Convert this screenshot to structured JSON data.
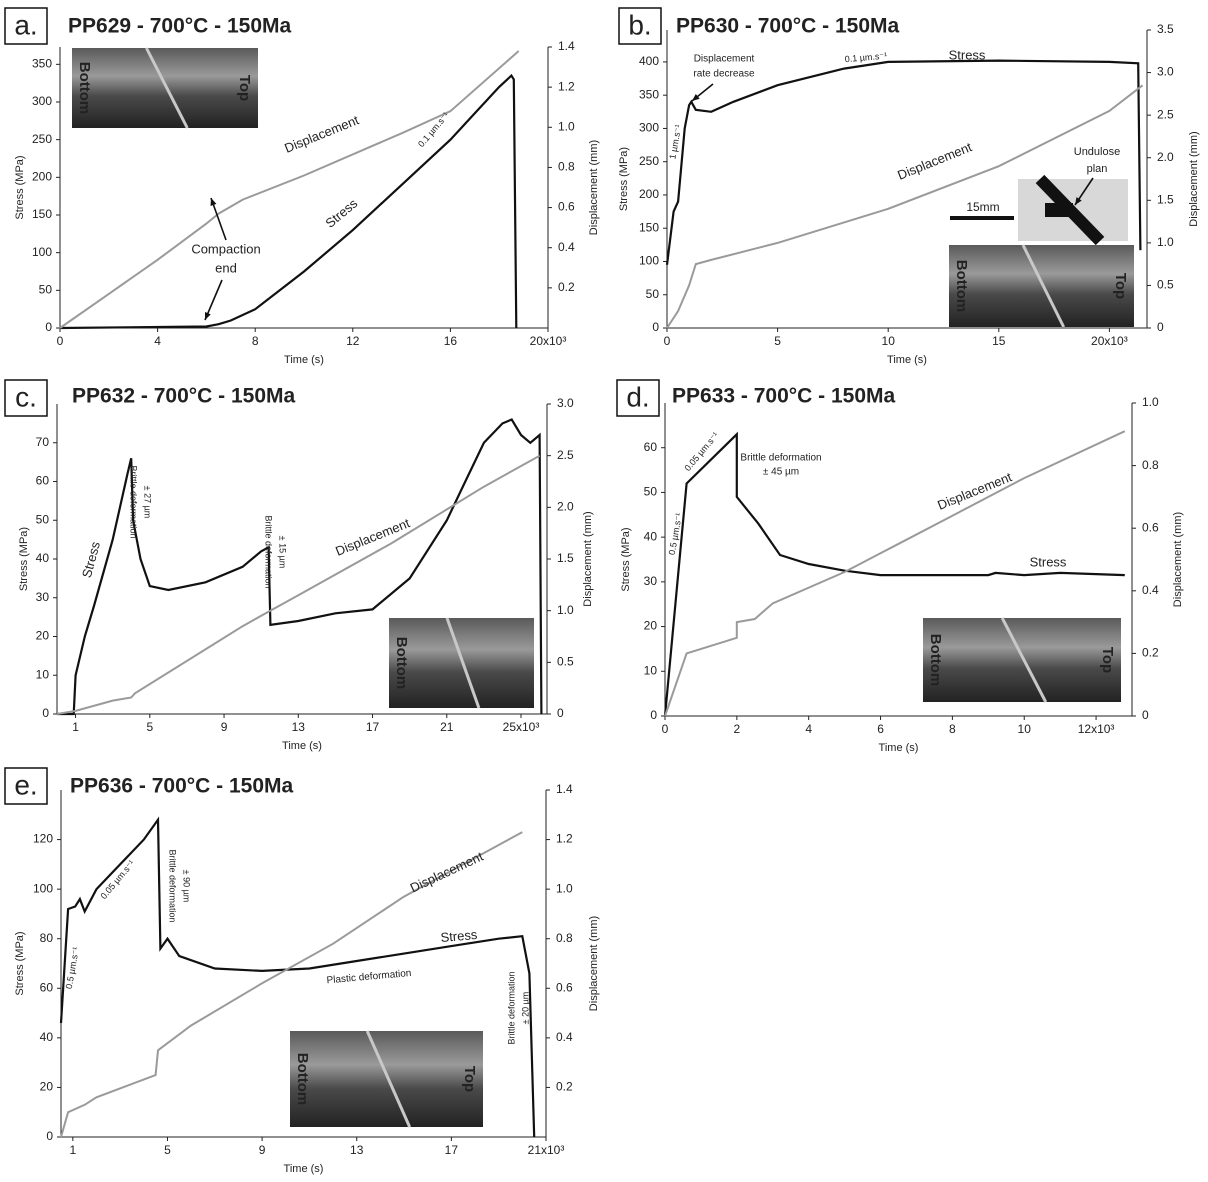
{
  "chart_data": [
    {
      "type": "line",
      "panel_label": "a.",
      "title": "PP629 - 700°C - 150Ma",
      "x_label": "Time (s)",
      "y_label": "Stress (MPa)",
      "y2_label": "Displacement (mm)",
      "xlim": [
        0,
        20
      ],
      "xticks": [
        0,
        4,
        8,
        12,
        16,
        {
          "value": 20,
          "label": "20x10³"
        }
      ],
      "ylim": [
        0,
        373
      ],
      "yticks": [
        0,
        50,
        100,
        150,
        200,
        250,
        300,
        350
      ],
      "y2lim": [
        0,
        1.4
      ],
      "y2ticks": [
        0.2,
        0.4,
        0.6,
        0.8,
        {
          "value": 1,
          "label": "1.0"
        },
        1.2,
        1.4
      ],
      "series": [
        {
          "name": "Stress",
          "color": "#111111",
          "x": [
            0,
            6,
            6.5,
            7,
            8,
            10,
            12,
            14,
            16,
            17,
            18,
            18.5,
            18.6,
            18.7
          ],
          "values": [
            0,
            2,
            5,
            10,
            25,
            75,
            130,
            190,
            250,
            285,
            320,
            335,
            330,
            0
          ]
        },
        {
          "name": "Displacement",
          "color": "#9a9a9a",
          "axis": "y2",
          "x": [
            0,
            2,
            4,
            6,
            6.5,
            7.5,
            10,
            14,
            16,
            18.8
          ],
          "values": [
            0,
            0.17,
            0.34,
            0.52,
            0.57,
            0.64,
            0.76,
            0.97,
            1.08,
            1.38
          ]
        }
      ],
      "annotations": [
        "0.1 µm.s⁻¹",
        "Compaction",
        "end"
      ],
      "photo_labels": [
        "Bottom",
        "Top"
      ]
    },
    {
      "type": "line",
      "panel_label": "b.",
      "title": "PP630 - 700°C - 150Ma",
      "x_label": "Time (s)",
      "y_label": "Stress (MPa)",
      "y2_label": "Displacement (mm)",
      "xlim": [
        0,
        21.7
      ],
      "xticks": [
        0,
        5,
        10,
        15,
        {
          "value": 20,
          "label": "20x10³"
        }
      ],
      "ylim": [
        0,
        448
      ],
      "yticks": [
        0,
        50,
        100,
        150,
        200,
        250,
        300,
        350,
        400
      ],
      "y2lim": [
        0,
        3.5
      ],
      "y2ticks": [
        0,
        0.5,
        {
          "value": 1,
          "label": "1.0"
        },
        1.5,
        {
          "value": 2,
          "label": "2.0"
        },
        2.5,
        {
          "value": 3,
          "label": "3.0"
        },
        3.5
      ],
      "series": [
        {
          "name": "Stress",
          "color": "#111111",
          "x": [
            0,
            0.3,
            0.5,
            0.8,
            1.0,
            1.1,
            1.3,
            2,
            3,
            5,
            8,
            10,
            15,
            20,
            21.3,
            21.4
          ],
          "values": [
            95,
            175,
            190,
            300,
            335,
            340,
            328,
            325,
            340,
            365,
            390,
            400,
            402,
            400,
            398,
            117
          ]
        },
        {
          "name": "Displacement",
          "color": "#9a9a9a",
          "axis": "y2",
          "x": [
            0,
            0.5,
            1,
            1.3,
            2,
            5,
            10,
            15,
            20,
            21.5
          ],
          "values": [
            0,
            0.2,
            0.5,
            0.75,
            0.8,
            1.0,
            1.4,
            1.9,
            2.55,
            2.85
          ]
        }
      ],
      "annotations": [
        "Displacement",
        "rate decrease",
        "1 µm.s⁻¹",
        "0.1 µm.s⁻¹",
        "15mm",
        "Undulose",
        "plan"
      ],
      "photo_labels": [
        "Bottom",
        "Top"
      ]
    },
    {
      "type": "line",
      "panel_label": "c.",
      "title": "PP632 - 700°C - 150Ma",
      "x_label": "Time (s)",
      "y_label": "Stress (MPa)",
      "y2_label": "Displacement (mm)",
      "xlim": [
        0,
        26.4
      ],
      "xticks": [
        1,
        5,
        9,
        13,
        17,
        21,
        {
          "value": 25,
          "label": "25x10³"
        }
      ],
      "ylim": [
        0,
        80
      ],
      "yticks": [
        0,
        10,
        20,
        30,
        40,
        50,
        60,
        70
      ],
      "y2lim": [
        0,
        3
      ],
      "y2ticks": [
        0,
        0.5,
        {
          "value": 1,
          "label": "1.0"
        },
        1.5,
        {
          "value": 2,
          "label": "2.0"
        },
        2.5,
        {
          "value": 3,
          "label": "3.0"
        }
      ],
      "series": [
        {
          "name": "Stress",
          "color": "#111111",
          "x": [
            0,
            0.9,
            1,
            1.5,
            2,
            3,
            3.8,
            4,
            4.1,
            4.5,
            5,
            6,
            8,
            10,
            11,
            11.4,
            11.5,
            13,
            15,
            17,
            19,
            21,
            22,
            23,
            24,
            24.5,
            25,
            25.5,
            26,
            26.1
          ],
          "values": [
            0,
            0,
            10,
            20,
            28,
            45,
            62,
            66,
            50,
            40,
            33,
            32,
            34,
            38,
            42,
            43,
            23,
            24,
            26,
            27,
            35,
            50,
            60,
            70,
            75,
            76,
            72,
            70,
            72,
            0
          ]
        },
        {
          "name": "Displacement",
          "color": "#9a9a9a",
          "axis": "y2",
          "x": [
            0,
            1,
            3,
            4,
            4.2,
            10,
            11,
            13,
            18,
            23,
            26
          ],
          "values": [
            0,
            0.03,
            0.13,
            0.16,
            0.2,
            0.85,
            0.95,
            1.15,
            1.65,
            2.2,
            2.5
          ]
        }
      ],
      "annotations": [
        "Brittle deformation",
        "± 27 µm",
        "Brittle deformation",
        "± 15 µm"
      ],
      "photo_labels": [
        "Bottom"
      ]
    },
    {
      "type": "line",
      "panel_label": "d.",
      "title": "PP633 - 700°C - 150Ma",
      "x_label": "Time (s)",
      "y_label": "Stress (MPa)",
      "y2_label": "Displacement (mm)",
      "xlim": [
        0,
        13
      ],
      "xticks": [
        0,
        2,
        4,
        6,
        8,
        10,
        {
          "value": 12,
          "label": "12x10³"
        }
      ],
      "ylim": [
        0,
        70
      ],
      "yticks": [
        0,
        10,
        20,
        30,
        40,
        50,
        60
      ],
      "y2lim": [
        0,
        1
      ],
      "y2ticks": [
        0,
        0.2,
        0.4,
        0.6,
        0.8,
        {
          "value": 1,
          "label": "1.0"
        }
      ],
      "series": [
        {
          "name": "Stress",
          "color": "#111111",
          "x": [
            0,
            0.6,
            2,
            2,
            2.6,
            3.2,
            4,
            5,
            6,
            9,
            9.2,
            10,
            11,
            12.8
          ],
          "values": [
            0,
            52,
            63,
            49,
            43,
            36,
            34,
            32.5,
            31.5,
            31.5,
            32,
            31.5,
            32,
            31.5
          ]
        },
        {
          "name": "Displacement",
          "color": "#9a9a9a",
          "axis": "y2",
          "x": [
            0,
            0.6,
            2,
            2,
            2.5,
            3,
            5,
            8,
            10,
            12.8
          ],
          "values": [
            0,
            0.2,
            0.25,
            0.3,
            0.31,
            0.36,
            0.46,
            0.64,
            0.76,
            0.91
          ]
        }
      ],
      "annotations": [
        "0.05 µm.s⁻¹",
        "0.5 µm.s⁻¹",
        "Brittle deformation",
        "± 45 µm"
      ],
      "photo_labels": [
        "Bottom",
        "Top"
      ]
    },
    {
      "type": "line",
      "panel_label": "e.",
      "title": "PP636 - 700°C - 150Ma",
      "x_label": "Time (s)",
      "y_label": "Stress (MPa)",
      "y2_label": "Displacement (mm)",
      "xlim": [
        0.5,
        21
      ],
      "xticks": [
        1,
        5,
        9,
        13,
        17,
        {
          "value": 21,
          "label": "21x10³"
        }
      ],
      "ylim": [
        0,
        140
      ],
      "yticks": [
        0,
        20,
        40,
        60,
        80,
        100,
        120
      ],
      "y2lim": [
        0,
        1.4
      ],
      "y2ticks": [
        0.2,
        0.4,
        0.6,
        0.8,
        {
          "value": 1,
          "label": "1.0"
        },
        1.2,
        1.4
      ],
      "series": [
        {
          "name": "Stress",
          "color": "#111111",
          "x": [
            0.5,
            0.8,
            1.1,
            1.3,
            1.5,
            2,
            3,
            4,
            4.6,
            4.7,
            5,
            5.5,
            7,
            9,
            11,
            13,
            15,
            17,
            19,
            20,
            20.3,
            20.5
          ],
          "values": [
            46,
            92,
            93,
            96,
            91,
            100,
            110,
            120,
            128,
            76,
            80,
            73,
            68,
            67,
            68,
            71,
            74,
            77,
            80,
            81,
            66,
            0
          ]
        },
        {
          "name": "Displacement",
          "color": "#9a9a9a",
          "axis": "y2",
          "x": [
            0.5,
            0.8,
            1.5,
            2,
            4.5,
            4.6,
            6,
            9,
            12,
            15,
            20
          ],
          "values": [
            0,
            0.1,
            0.13,
            0.16,
            0.25,
            0.35,
            0.45,
            0.62,
            0.78,
            0.97,
            1.23
          ]
        }
      ],
      "annotations": [
        "0.5 µm.s⁻¹",
        "0.05 µm.s⁻¹",
        "Brittle deformation",
        "± 90 µm",
        "Plastic deformation",
        "Brittle deformation",
        "± 20 µm"
      ],
      "photo_labels": [
        "Bottom",
        "Top"
      ]
    }
  ]
}
